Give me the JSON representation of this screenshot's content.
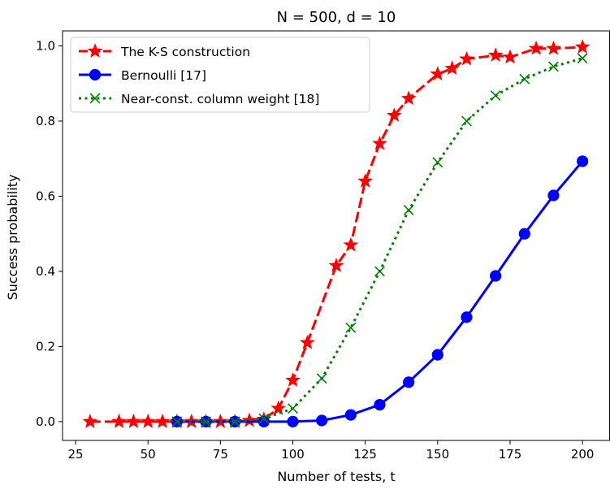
{
  "chart_data": {
    "type": "line",
    "title": "N = 500, d = 10",
    "xlabel": "Number of tests, t",
    "ylabel": "Success probability",
    "xlim": [
      20.5,
      209.5
    ],
    "ylim": [
      -0.05,
      1.04
    ],
    "xticks": [
      25,
      50,
      75,
      100,
      125,
      150,
      175,
      200
    ],
    "yticks": [
      0.0,
      0.2,
      0.4,
      0.6,
      0.8,
      1.0
    ],
    "xtick_labels": [
      "25",
      "50",
      "75",
      "100",
      "125",
      "150",
      "175",
      "200"
    ],
    "ytick_labels": [
      "0.0",
      "0.2",
      "0.4",
      "0.6",
      "0.8",
      "1.0"
    ],
    "grid": false,
    "legend_position": "top-left",
    "series": [
      {
        "name": "The K-S construction",
        "color": "#ff0000",
        "line_style": "dashed",
        "marker": "star",
        "x": [
          30,
          40,
          45,
          50,
          55,
          60,
          65,
          70,
          75,
          80,
          85,
          90,
          95,
          100,
          105,
          115,
          120,
          125,
          130,
          135,
          140,
          150,
          155,
          160,
          170,
          175,
          184,
          190,
          200
        ],
        "y": [
          0.0,
          0.0,
          0.0,
          0.0,
          0.0,
          0.0,
          0.0,
          0.0,
          0.0,
          0.0,
          0.003,
          0.006,
          0.035,
          0.11,
          0.21,
          0.415,
          0.47,
          0.64,
          0.74,
          0.815,
          0.86,
          0.925,
          0.94,
          0.965,
          0.975,
          0.97,
          0.993,
          0.993,
          0.997
        ]
      },
      {
        "name": "Bernoulli [17]",
        "color": "#0000ff",
        "line_style": "solid",
        "marker": "circle",
        "x": [
          60,
          70,
          80,
          90,
          100,
          110,
          120,
          130,
          140,
          150,
          160,
          170,
          180,
          190,
          200
        ],
        "y": [
          0.0,
          0.0,
          0.0,
          0.0,
          0.0,
          0.003,
          0.018,
          0.045,
          0.105,
          0.178,
          0.278,
          0.388,
          0.5,
          0.602,
          0.693
        ]
      },
      {
        "name": "Near-const. column weight [18]",
        "color": "#008000",
        "line_style": "dotted",
        "marker": "x",
        "x": [
          60,
          70,
          80,
          90,
          100,
          110,
          120,
          130,
          140,
          150,
          160,
          170,
          180,
          190,
          200
        ],
        "y": [
          0.0,
          0.0,
          0.0,
          0.008,
          0.035,
          0.115,
          0.25,
          0.4,
          0.563,
          0.69,
          0.8,
          0.868,
          0.912,
          0.945,
          0.967
        ]
      }
    ]
  }
}
